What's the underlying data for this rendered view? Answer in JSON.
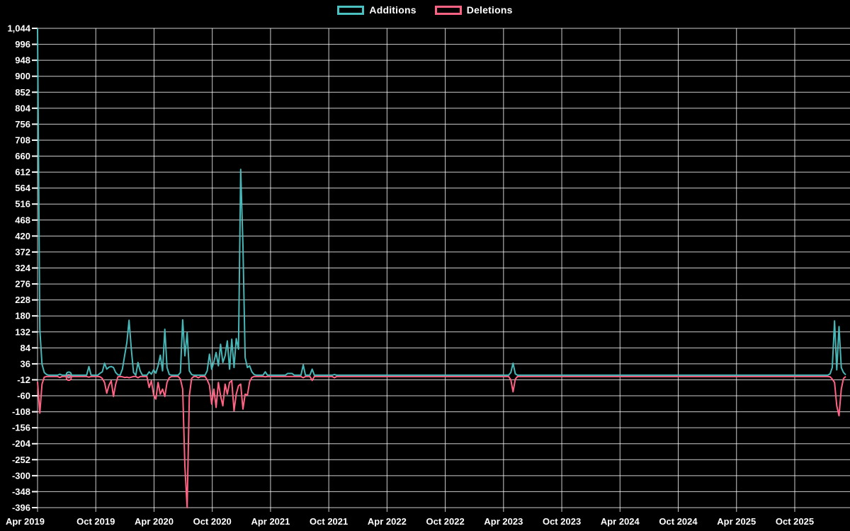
{
  "legend": {
    "items": [
      {
        "label": "Additions",
        "color": "#4bc0c0"
      },
      {
        "label": "Deletions",
        "color": "#ff6384"
      }
    ]
  },
  "chart_data": {
    "type": "line",
    "title": "",
    "xlabel": "",
    "ylabel": "",
    "background_color": "#000000",
    "grid_color": "#ffffff",
    "text_color": "#ffffff",
    "legend_position": "top-center",
    "series": [
      {
        "name": "Additions",
        "color": "#4bc0c0"
      },
      {
        "name": "Deletions",
        "color": "#ff6384"
      }
    ],
    "x_axis": {
      "tick_labels": [
        "Apr 2019",
        "Oct 2019",
        "Apr 2020",
        "Oct 2020",
        "Apr 2021",
        "Oct 2021",
        "Apr 2022",
        "Oct 2022",
        "Apr 2023",
        "Oct 2023",
        "Apr 2024",
        "Oct 2024",
        "Apr 2025",
        "Oct 2025"
      ],
      "start": "Apr 2019",
      "weeks_total": 362,
      "weeks_per_half_year": 26.09
    },
    "y_axis": {
      "min": -396,
      "max": 1044,
      "step": 48,
      "tick_labels": [
        "1,044",
        "996",
        "948",
        "900",
        "852",
        "804",
        "756",
        "708",
        "660",
        "612",
        "564",
        "516",
        "468",
        "420",
        "372",
        "324",
        "276",
        "228",
        "180",
        "132",
        "84",
        "36",
        "-12",
        "-60",
        "-108",
        "-156",
        "-204",
        "-252",
        "-300",
        "-348",
        "-396"
      ]
    },
    "baseline": {
      "additions": 2,
      "deletions": -2
    },
    "weekly_points": [
      [
        0,
        1044,
        -18
      ],
      [
        1,
        140,
        -112
      ],
      [
        2,
        35,
        -25
      ],
      [
        3,
        10,
        -4
      ],
      [
        4,
        4,
        -2
      ],
      [
        10,
        5,
        -5
      ],
      [
        14,
        4,
        -6
      ],
      [
        23,
        28,
        -4
      ],
      [
        28,
        8,
        -3
      ],
      [
        29,
        12,
        -8
      ],
      [
        30,
        38,
        -20
      ],
      [
        31,
        20,
        -52
      ],
      [
        32,
        26,
        -28
      ],
      [
        33,
        28,
        -15
      ],
      [
        34,
        25,
        -62
      ],
      [
        35,
        10,
        -25
      ],
      [
        36,
        3,
        -3
      ],
      [
        38,
        20,
        -3
      ],
      [
        39,
        60,
        -5
      ],
      [
        40,
        100,
        -4
      ],
      [
        41,
        167,
        -6
      ],
      [
        42,
        80,
        -4
      ],
      [
        43,
        10,
        -2
      ],
      [
        45,
        40,
        -6
      ],
      [
        46,
        14,
        -2
      ],
      [
        50,
        12,
        -35
      ],
      [
        51,
        5,
        -15
      ],
      [
        52,
        18,
        -58
      ],
      [
        53,
        8,
        -70
      ],
      [
        54,
        30,
        -20
      ],
      [
        55,
        62,
        -55
      ],
      [
        56,
        15,
        -40
      ],
      [
        57,
        140,
        -62
      ],
      [
        58,
        25,
        -20
      ],
      [
        59,
        4,
        -6
      ],
      [
        64,
        10,
        -10
      ],
      [
        65,
        168,
        -40
      ],
      [
        66,
        60,
        -270
      ],
      [
        67,
        130,
        -396
      ],
      [
        68,
        15,
        -60
      ],
      [
        69,
        4,
        -8
      ],
      [
        72,
        2,
        -6
      ],
      [
        76,
        15,
        -12
      ],
      [
        77,
        65,
        -28
      ],
      [
        78,
        20,
        -85
      ],
      [
        79,
        42,
        -40
      ],
      [
        80,
        70,
        -95
      ],
      [
        81,
        30,
        -20
      ],
      [
        82,
        95,
        -60
      ],
      [
        83,
        40,
        -90
      ],
      [
        84,
        60,
        -25
      ],
      [
        85,
        105,
        -55
      ],
      [
        86,
        20,
        -20
      ],
      [
        87,
        110,
        -15
      ],
      [
        88,
        25,
        -105
      ],
      [
        89,
        112,
        -55
      ],
      [
        90,
        80,
        -30
      ],
      [
        91,
        620,
        -25
      ],
      [
        92,
        390,
        -100
      ],
      [
        93,
        55,
        -55
      ],
      [
        94,
        25,
        -58
      ],
      [
        95,
        30,
        -18
      ],
      [
        96,
        12,
        -5
      ],
      [
        97,
        4,
        -2
      ],
      [
        102,
        12,
        -3
      ],
      [
        112,
        7,
        -2
      ],
      [
        113,
        7,
        -2
      ],
      [
        114,
        7,
        -2
      ],
      [
        119,
        33,
        -6
      ],
      [
        123,
        20,
        -14
      ],
      [
        133,
        4,
        -6
      ],
      [
        212,
        10,
        -12
      ],
      [
        213,
        38,
        -48
      ],
      [
        214,
        6,
        -10
      ],
      [
        355,
        6,
        -3
      ],
      [
        356,
        25,
        -10
      ],
      [
        357,
        165,
        -20
      ],
      [
        358,
        18,
        -90
      ],
      [
        359,
        148,
        -120
      ],
      [
        360,
        25,
        -40
      ],
      [
        361,
        10,
        -8
      ],
      [
        362,
        3,
        -2
      ]
    ],
    "point_markers": [
      {
        "series": "Additions",
        "week": 14,
        "value": 4
      },
      {
        "series": "Deletions",
        "week": 14,
        "value": -6
      }
    ]
  }
}
